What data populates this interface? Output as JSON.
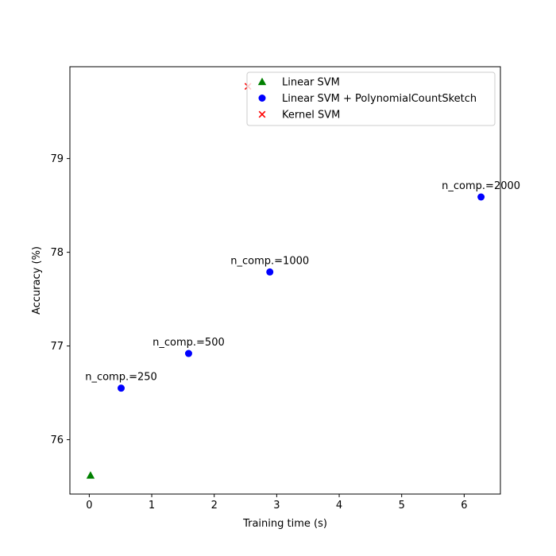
{
  "chart_data": {
    "type": "scatter",
    "title": "",
    "xlabel": "Training time (s)",
    "ylabel": "Accuracy (%)",
    "xlim": [
      -0.31,
      6.58
    ],
    "ylim": [
      75.42,
      79.98
    ],
    "xticks": [
      0,
      1,
      2,
      3,
      4,
      5,
      6
    ],
    "yticks": [
      76,
      77,
      78,
      79
    ],
    "grid": false,
    "legend_position": "top-right",
    "series": [
      {
        "name": "Linear SVM",
        "marker": "triangle",
        "color": "#008000",
        "points": [
          {
            "x": 0.02,
            "y": 75.62
          }
        ]
      },
      {
        "name": "Linear SVM + PolynomialCountSketch",
        "marker": "circle",
        "color": "#0000ff",
        "points": [
          {
            "x": 0.51,
            "y": 76.55,
            "label": "n_comp.=250"
          },
          {
            "x": 1.59,
            "y": 76.92,
            "label": "n_comp.=500"
          },
          {
            "x": 2.89,
            "y": 77.79,
            "label": "n_comp.=1000"
          },
          {
            "x": 6.27,
            "y": 78.59,
            "label": "n_comp.=2000"
          }
        ]
      },
      {
        "name": "Kernel SVM",
        "marker": "x",
        "color": "#ff0000",
        "points": [
          {
            "x": 2.54,
            "y": 79.77
          }
        ]
      }
    ]
  }
}
